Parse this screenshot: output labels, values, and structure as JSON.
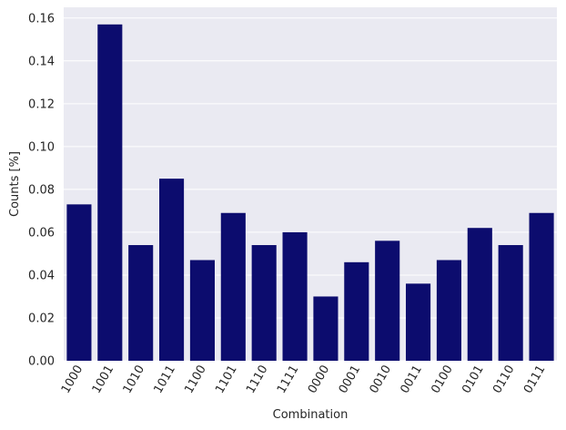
{
  "chart_data": {
    "type": "bar",
    "title": "",
    "xlabel": "Combination",
    "ylabel": "Counts [%]",
    "categories": [
      "1000",
      "1001",
      "1010",
      "1011",
      "1100",
      "1101",
      "1110",
      "1111",
      "0000",
      "0001",
      "0010",
      "0011",
      "0100",
      "0101",
      "0110",
      "0111"
    ],
    "values": [
      0.073,
      0.157,
      0.054,
      0.085,
      0.047,
      0.069,
      0.054,
      0.06,
      0.03,
      0.046,
      0.056,
      0.036,
      0.047,
      0.062,
      0.054,
      0.069
    ],
    "ylim": [
      0,
      0.165
    ],
    "yticks": [
      0.0,
      0.02,
      0.04,
      0.06,
      0.08,
      0.1,
      0.12,
      0.14,
      0.16
    ],
    "ytick_labels": [
      "0.00",
      "0.02",
      "0.04",
      "0.06",
      "0.08",
      "0.10",
      "0.12",
      "0.14",
      "0.16"
    ],
    "grid": true,
    "bar_color": "#0c0c6e",
    "background_color": "#eaeaf2",
    "grid_color": "#ffffff"
  }
}
